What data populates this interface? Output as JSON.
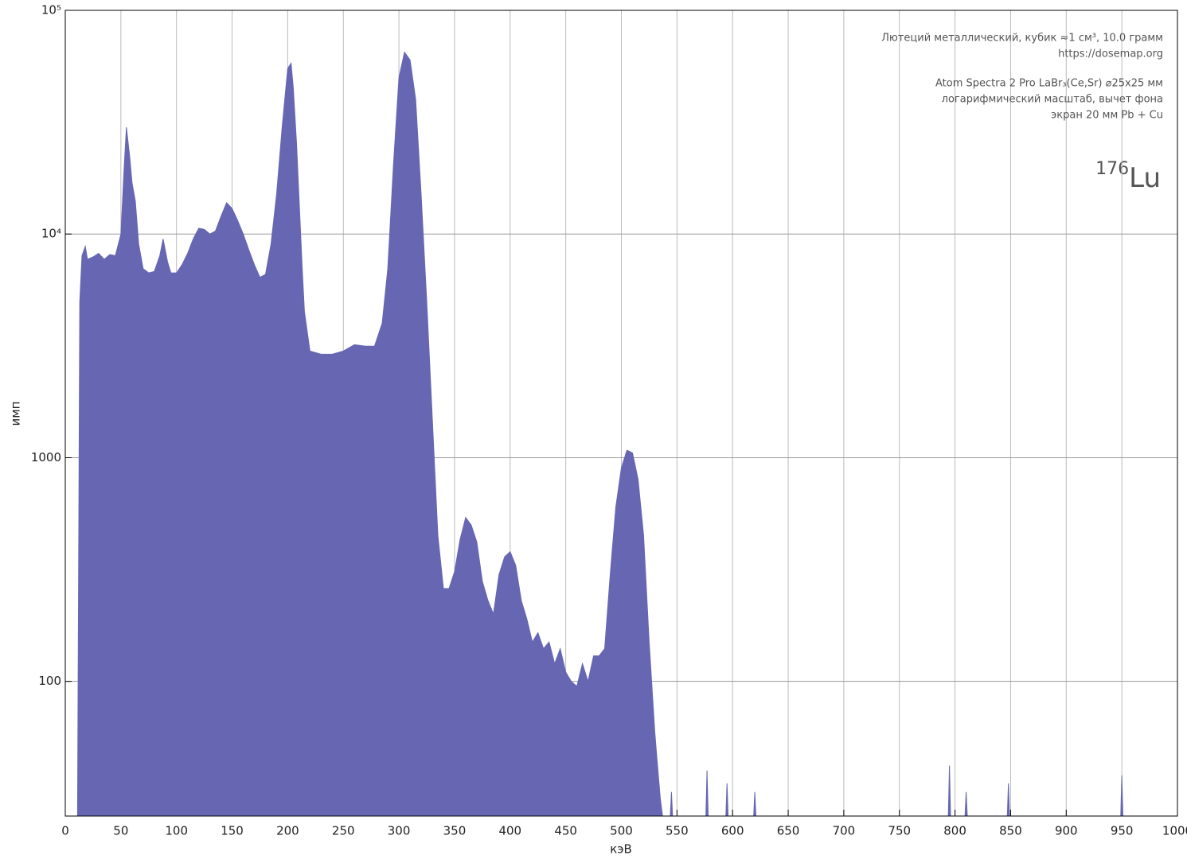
{
  "chart_data": {
    "type": "area",
    "x_label": "кэВ",
    "y_label": "имп",
    "log_y": true,
    "grid": true,
    "color": "#6666b3",
    "annotations": [
      "Лютеций металлический, кубик ≈1 см³, 10.0 грамм",
      "https://dosemap.org",
      "Atom Spectra 2 Pro LaBr₃(Ce,Sr) ⌀25x25 мм",
      "логарифмический масштаб, вычет фона",
      "экран 20 мм Pb + Cu"
    ],
    "isotope_mass": "176",
    "isotope_symbol": "Lu",
    "xlim": [
      0,
      1000
    ],
    "xticks": [
      0,
      50,
      100,
      150,
      200,
      250,
      300,
      350,
      400,
      450,
      500,
      550,
      600,
      650,
      700,
      750,
      800,
      850,
      900,
      950,
      1000
    ],
    "ylim": [
      25,
      100000
    ],
    "yticks": [
      100,
      1000,
      {
        "value": 10000,
        "label": "10⁴"
      },
      {
        "value": 100000,
        "label": "10⁵"
      }
    ],
    "x": [
      11,
      13,
      15,
      18,
      20,
      25,
      30,
      35,
      40,
      45,
      50,
      53,
      55,
      58,
      60,
      63,
      66,
      70,
      75,
      80,
      85,
      88,
      92,
      95,
      100,
      105,
      110,
      115,
      120,
      125,
      130,
      135,
      140,
      145,
      150,
      155,
      160,
      165,
      170,
      175,
      180,
      185,
      190,
      195,
      200,
      203,
      205,
      208,
      210,
      213,
      215,
      220,
      230,
      240,
      250,
      260,
      270,
      278,
      285,
      290,
      295,
      300,
      305,
      310,
      315,
      320,
      325,
      330,
      335,
      340,
      345,
      350,
      355,
      360,
      365,
      370,
      375,
      380,
      385,
      390,
      395,
      400,
      405,
      410,
      415,
      420,
      425,
      430,
      435,
      440,
      445,
      450,
      455,
      460,
      465,
      470,
      475,
      480,
      485,
      490,
      495,
      500,
      505,
      510,
      515,
      520,
      525,
      530,
      532,
      535,
      537,
      544,
      545,
      546,
      576,
      577,
      578,
      594,
      595,
      596,
      619,
      620,
      621,
      794,
      795,
      796,
      809,
      810,
      811,
      847,
      848,
      849,
      949,
      950,
      951,
      1000
    ],
    "values": [
      25,
      5000,
      8000,
      8800,
      7700,
      7900,
      8200,
      7700,
      8100,
      8000,
      10000,
      20000,
      30000,
      22000,
      17000,
      14000,
      9000,
      7000,
      6700,
      6800,
      8000,
      9500,
      7500,
      6700,
      6700,
      7300,
      8200,
      9500,
      10600,
      10500,
      10000,
      10300,
      12000,
      13800,
      13000,
      11500,
      10000,
      8500,
      7300,
      6400,
      6600,
      9000,
      15000,
      30000,
      55000,
      58000,
      45000,
      25000,
      15000,
      7000,
      4500,
      3000,
      2900,
      2900,
      3000,
      3200,
      3150,
      3150,
      4000,
      7000,
      20000,
      50000,
      65000,
      60000,
      40000,
      15000,
      5000,
      1500,
      450,
      260,
      260,
      310,
      430,
      540,
      500,
      420,
      280,
      230,
      200,
      300,
      360,
      380,
      330,
      230,
      190,
      150,
      165,
      140,
      150,
      120,
      140,
      110,
      100,
      95,
      120,
      100,
      130,
      130,
      140,
      300,
      600,
      900,
      1080,
      1050,
      800,
      450,
      150,
      60,
      45,
      30,
      25,
      25,
      32,
      25,
      25,
      40,
      25,
      25,
      35,
      25,
      25,
      32,
      25,
      25,
      42,
      25,
      25,
      32,
      25,
      25,
      35,
      25,
      25,
      38,
      25,
      25
    ]
  }
}
